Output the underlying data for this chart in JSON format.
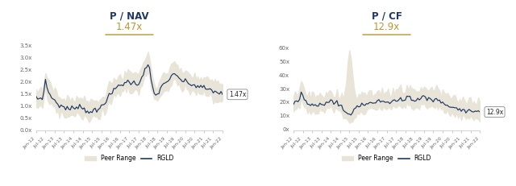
{
  "left_title": "P / NAV",
  "left_subtitle": "1.47x",
  "right_title": "P / CF",
  "right_subtitle": "12.9x",
  "left_label": "1.47x",
  "right_label": "12.9x",
  "title_color": "#1f3864",
  "subtitle_color": "#b8972a",
  "peer_range_color": "#e8e4d8",
  "line_color": "#1f3864",
  "background_color": "#ffffff",
  "x_tick_labels": [
    "Jan-12",
    "Jul-12",
    "Jan-13",
    "Jul-13",
    "Jan-14",
    "Jul-14",
    "Jan-15",
    "Jul-15",
    "Jan-16",
    "Jul-16",
    "Jan-17",
    "Jul-17",
    "Jan-18",
    "Jul-18",
    "Jan-19",
    "Jul-19",
    "Jan-20",
    "Jul-20",
    "Jan-21",
    "Jul-21",
    "Jan-22"
  ],
  "left_yticks": [
    0.0,
    0.5,
    1.0,
    1.5,
    2.0,
    2.5,
    3.0,
    3.5
  ],
  "left_ytick_labels": [
    "0.0x",
    "0.5x",
    "1.0x",
    "1.5x",
    "2.0x",
    "2.5x",
    "3.0x",
    "3.5x"
  ],
  "right_yticks": [
    0,
    10,
    20,
    30,
    40,
    50,
    60
  ],
  "right_ytick_labels": [
    "0x",
    "10x",
    "20x",
    "30x",
    "40x",
    "50x",
    "60x"
  ],
  "legend_peer": "Peer Range",
  "legend_rgld": "RGLD"
}
